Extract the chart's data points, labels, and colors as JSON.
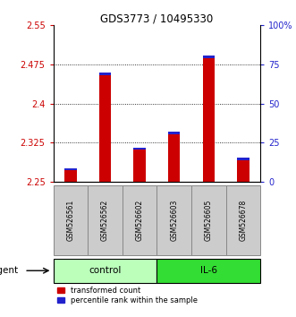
{
  "title": "GDS3773 / 10495330",
  "samples": [
    "GSM526561",
    "GSM526562",
    "GSM526602",
    "GSM526603",
    "GSM526605",
    "GSM526678"
  ],
  "groups": [
    "control",
    "control",
    "control",
    "IL-6",
    "IL-6",
    "IL-6"
  ],
  "red_values": [
    2.272,
    2.455,
    2.312,
    2.342,
    2.487,
    2.292
  ],
  "blue_values": [
    0.004,
    0.005,
    0.004,
    0.004,
    0.005,
    0.004
  ],
  "y_min": 2.25,
  "y_max": 2.55,
  "y_ticks_left": [
    2.25,
    2.325,
    2.4,
    2.475,
    2.55
  ],
  "y_ticks_right_vals": [
    0,
    25,
    50,
    75,
    100
  ],
  "y_ticks_right_labels": [
    "0",
    "25",
    "50",
    "75",
    "100%"
  ],
  "bar_color_red": "#cc0000",
  "bar_color_blue": "#2222cc",
  "group_colors_control": "#bbffbb",
  "group_colors_il6": "#33dd33",
  "left_tick_color": "#cc0000",
  "right_tick_color": "#2222cc",
  "title_color": "black",
  "agent_label": "agent",
  "control_label": "control",
  "il6_label": "IL-6",
  "legend_red": "transformed count",
  "legend_blue": "percentile rank within the sample",
  "bar_width": 0.35,
  "sample_box_color": "#cccccc",
  "sample_box_edge": "#888888"
}
